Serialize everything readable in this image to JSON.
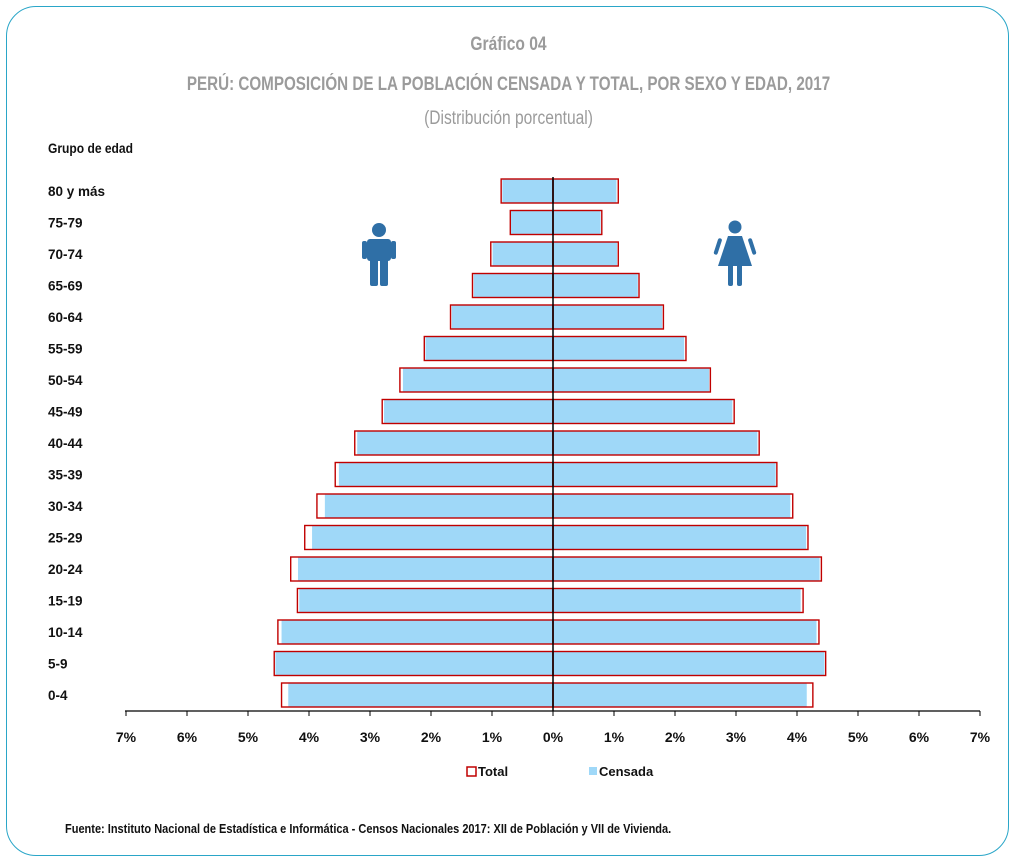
{
  "header": {
    "label": "Gráfico 04",
    "title": "PERÚ: COMPOSICIÓN DE LA POBLACIÓN CENSADA Y TOTAL, POR SEXO Y EDAD, 2017",
    "subtitle": "(Distribución porcentual)"
  },
  "source": "Fuente: Instituto Nacional de Estadística e Informática - Censos Nacionales 2017: XII de Población y VII de Vivienda.",
  "colors": {
    "censada": "#9fd8f8",
    "total_border": "#c00000",
    "icon": "#2f6fa6",
    "frame": "#2aa6c8"
  },
  "icons": {
    "male": "man-icon",
    "female": "woman-icon"
  },
  "chart_data": {
    "type": "bar",
    "orientation": "horizontal",
    "ylabel": "Grupo de edad",
    "categories": [
      "80 y más",
      "75-79",
      "70-74",
      "65-69",
      "60-64",
      "55-59",
      "50-54",
      "45-49",
      "40-44",
      "35-39",
      "30-34",
      "25-29",
      "20-24",
      "15-19",
      "10-14",
      "5-9",
      "0-4"
    ],
    "xlim": [
      -7,
      7
    ],
    "xticks": [
      "7%",
      "6%",
      "5%",
      "4%",
      "3%",
      "2%",
      "1%",
      "0%",
      "1%",
      "2%",
      "3%",
      "4%",
      "5%",
      "6%",
      "7%"
    ],
    "series": [
      {
        "name": "Total",
        "men": [
          0.85,
          0.7,
          1.02,
          1.32,
          1.68,
          2.11,
          2.51,
          2.8,
          3.25,
          3.57,
          3.87,
          4.07,
          4.3,
          4.19,
          4.51,
          4.57,
          4.45
        ],
        "women": [
          1.07,
          0.8,
          1.07,
          1.41,
          1.81,
          2.18,
          2.58,
          2.97,
          3.38,
          3.67,
          3.93,
          4.18,
          4.4,
          4.1,
          4.36,
          4.47,
          4.26
        ]
      },
      {
        "name": "Censada",
        "men": [
          0.83,
          0.69,
          0.99,
          1.3,
          1.66,
          2.09,
          2.46,
          2.77,
          3.21,
          3.51,
          3.74,
          3.95,
          4.18,
          4.16,
          4.45,
          4.55,
          4.34
        ],
        "women": [
          1.04,
          0.78,
          1.05,
          1.39,
          1.79,
          2.15,
          2.56,
          2.94,
          3.35,
          3.65,
          3.89,
          4.15,
          4.37,
          4.06,
          4.32,
          4.45,
          4.16
        ]
      }
    ],
    "legend": "bottom"
  }
}
